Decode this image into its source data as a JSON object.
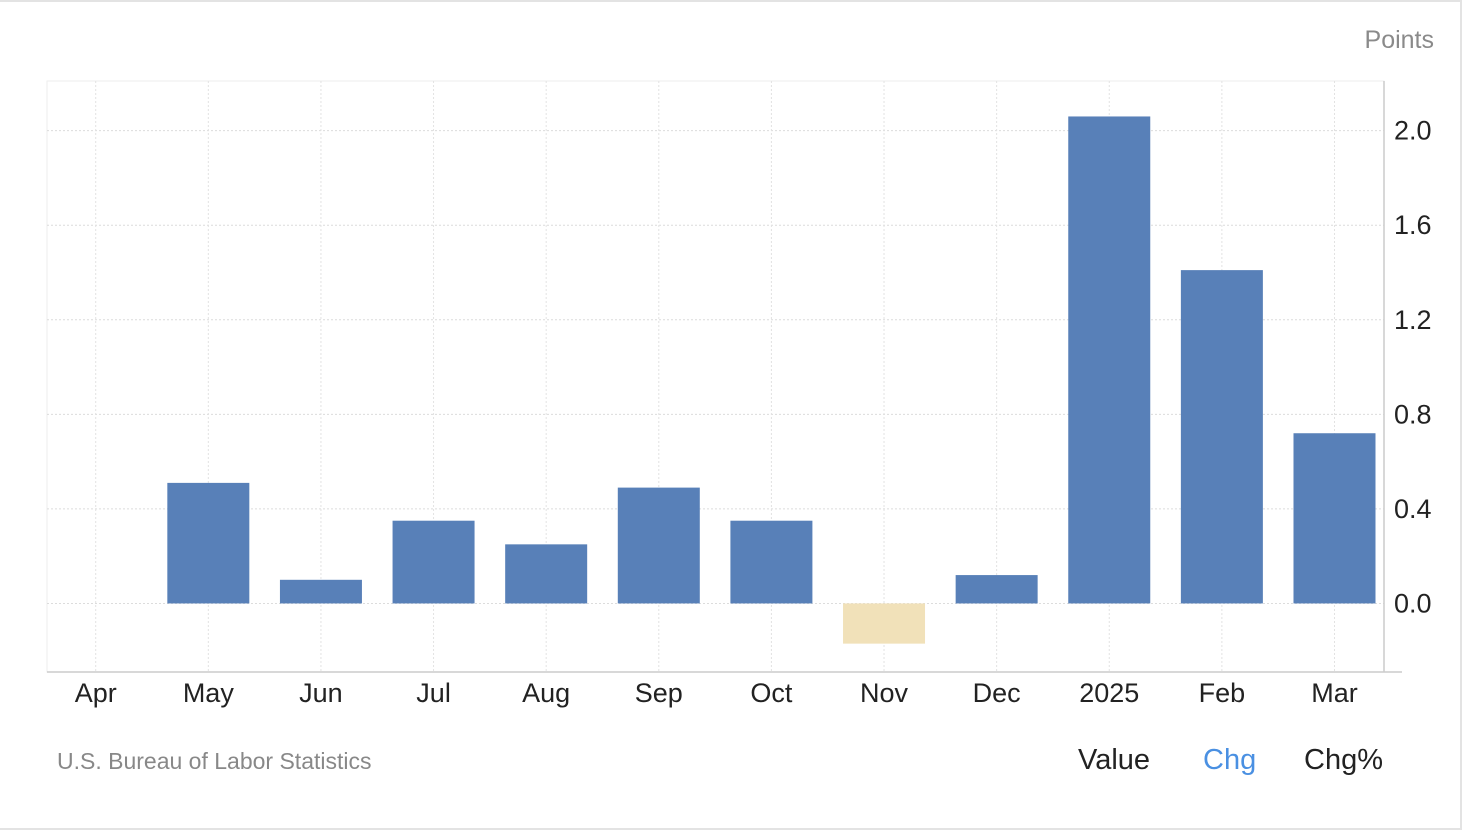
{
  "chart_data": {
    "type": "bar",
    "unit_label": "Points",
    "categories": [
      "Apr",
      "May",
      "Jun",
      "Jul",
      "Aug",
      "Sep",
      "Oct",
      "Nov",
      "Dec",
      "2025",
      "Feb",
      "Mar"
    ],
    "values": [
      null,
      0.51,
      0.1,
      0.35,
      0.25,
      0.49,
      0.35,
      -0.17,
      0.12,
      2.06,
      1.41,
      0.72
    ],
    "ylim": [
      -0.29,
      2.21
    ],
    "yticks": [
      "0.0",
      "0.4",
      "0.8",
      "1.2",
      "1.6",
      "2.0"
    ],
    "ytick_values": [
      0.0,
      0.4,
      0.8,
      1.2,
      1.6,
      2.0
    ],
    "y_axis_position": "right",
    "grid": true,
    "colors": {
      "positive": "#5880b8",
      "negative": "#f1e1b9"
    }
  },
  "source": "U.S. Bureau of Labor Statistics",
  "toggles": {
    "value": "Value",
    "chg": "Chg",
    "chgpct": "Chg%",
    "active": "chg"
  }
}
